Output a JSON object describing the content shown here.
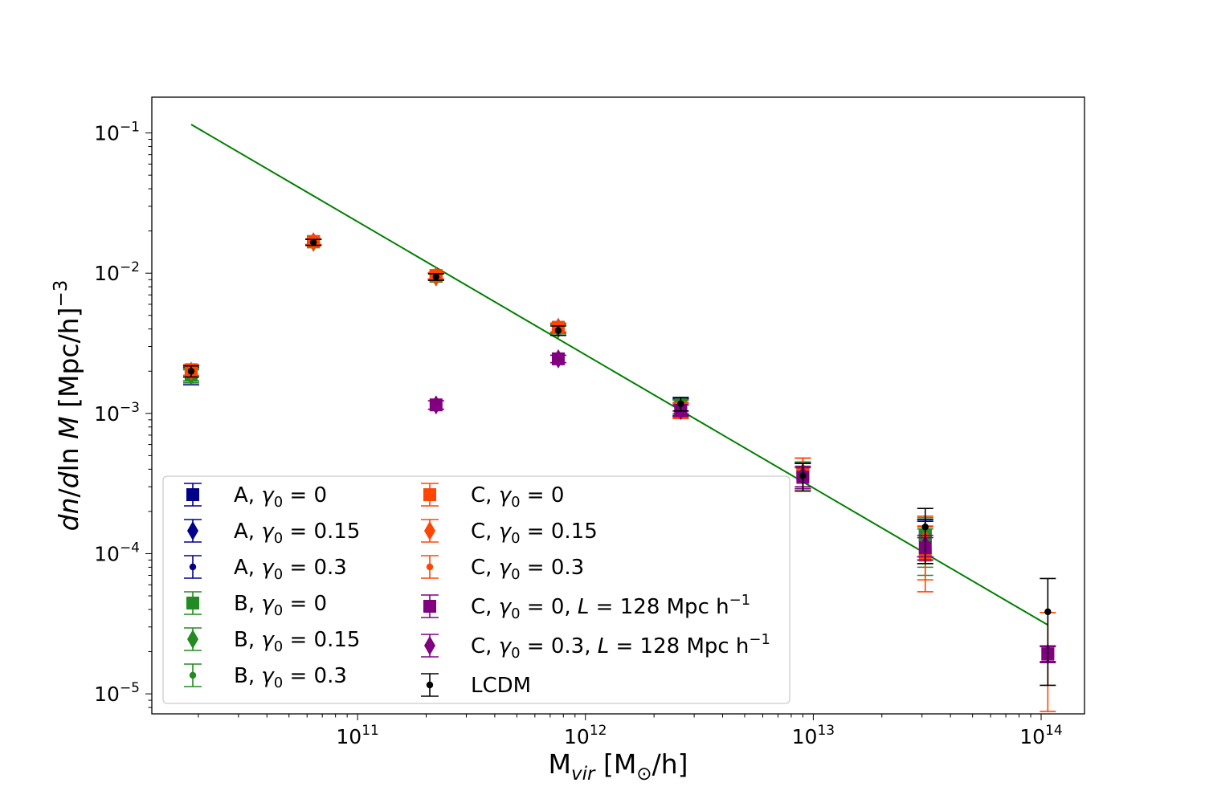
{
  "chart_data": {
    "type": "scatter",
    "title": "",
    "xlabel": "M_vir [M_⊙/h]",
    "ylabel": "dn/d ln M [Mpc/h]^−3",
    "xscale": "log",
    "yscale": "log",
    "xlim": [
      12500000000,
      155000000000000
    ],
    "ylim": [
      7.2e-06,
      0.18
    ],
    "grid": false,
    "legend_position": "lower-left",
    "xticks": [
      {
        "value": 100000000000,
        "base": "10",
        "exp": "11"
      },
      {
        "value": 1000000000000,
        "base": "10",
        "exp": "12"
      },
      {
        "value": 10000000000000,
        "base": "10",
        "exp": "13"
      },
      {
        "value": 100000000000000,
        "base": "10",
        "exp": "14"
      }
    ],
    "yticks": [
      {
        "value": 0.1,
        "base": "10",
        "exp": "−1"
      },
      {
        "value": 0.01,
        "base": "10",
        "exp": "−2"
      },
      {
        "value": 0.001,
        "base": "10",
        "exp": "−3"
      },
      {
        "value": 0.0001,
        "base": "10",
        "exp": "−4"
      },
      {
        "value": 1e-05,
        "base": "10",
        "exp": "−5"
      }
    ],
    "fit_line": {
      "color": "#008000",
      "x": [
        18600000000,
        107000000000000
      ],
      "y": [
        0.115,
        3.1e-05
      ]
    },
    "series": [
      {
        "name": "A, γ0 = 0",
        "label_pre": "A, ",
        "gamma": "0",
        "label_post": "",
        "color": "#00008b",
        "marker": "square",
        "x": [
          18600000000,
          64000000000,
          221000000000,
          760000000000,
          2620000000000,
          9000000000000,
          31000000000000
        ],
        "y": [
          0.00195,
          0.0168,
          0.0096,
          0.0041,
          0.00112,
          0.00037,
          0.000135
        ],
        "err_lo": [
          0.00035,
          0.0008,
          0.0005,
          0.0003,
          0.00015,
          8e-05,
          4e-05
        ],
        "err_hi": [
          0.00018,
          0.0008,
          0.0005,
          0.0003,
          0.00015,
          8e-05,
          4e-05
        ]
      },
      {
        "name": "A, γ0 = 0.15",
        "label_pre": "A, ",
        "gamma": "0.15",
        "label_post": "",
        "color": "#00008b",
        "marker": "diamond",
        "x": [
          18600000000,
          64000000000,
          221000000000,
          760000000000,
          2620000000000,
          9000000000000,
          31000000000000
        ],
        "y": [
          0.0019,
          0.0167,
          0.0095,
          0.0041,
          0.00111,
          0.00036,
          0.00013
        ],
        "err_lo": [
          0.0002,
          0.0008,
          0.0005,
          0.0003,
          0.00015,
          8e-05,
          4e-05
        ],
        "err_hi": [
          0.0002,
          0.0008,
          0.0005,
          0.0003,
          0.00015,
          8e-05,
          4e-05
        ]
      },
      {
        "name": "A, γ0 = 0.3",
        "label_pre": "A, ",
        "gamma": "0.3",
        "label_post": "",
        "color": "#00008b",
        "marker": "dot",
        "x": [
          18600000000,
          64000000000,
          221000000000,
          760000000000,
          2620000000000,
          9000000000000,
          31000000000000
        ],
        "y": [
          0.0019,
          0.0166,
          0.0095,
          0.004,
          0.0011,
          0.00036,
          0.000135
        ],
        "err_lo": [
          0.0002,
          0.0008,
          0.0005,
          0.0003,
          0.00015,
          8e-05,
          4e-05
        ],
        "err_hi": [
          0.0002,
          0.0008,
          0.0005,
          0.0003,
          0.00015,
          8e-05,
          4e-05
        ]
      },
      {
        "name": "B, γ0 = 0",
        "label_pre": "B, ",
        "gamma": "0",
        "label_post": "",
        "color": "#228b22",
        "marker": "square",
        "x": [
          18600000000,
          64000000000,
          221000000000,
          760000000000,
          2620000000000,
          9000000000000,
          31000000000000
        ],
        "y": [
          0.0019,
          0.0167,
          0.0095,
          0.0041,
          0.00115,
          0.00037,
          0.000135
        ],
        "err_lo": [
          0.0002,
          0.0008,
          0.0005,
          0.0003,
          0.00015,
          8e-05,
          5e-05
        ],
        "err_hi": [
          0.0002,
          0.0008,
          0.0005,
          0.0003,
          0.00015,
          8e-05,
          5e-05
        ]
      },
      {
        "name": "B, γ0 = 0.15",
        "label_pre": "B, ",
        "gamma": "0.15",
        "label_post": "",
        "color": "#228b22",
        "marker": "diamond",
        "x": [
          18600000000,
          64000000000,
          221000000000,
          760000000000,
          2620000000000,
          9000000000000,
          31000000000000
        ],
        "y": [
          0.00185,
          0.0166,
          0.0094,
          0.004,
          0.0011,
          0.00036,
          0.00013
        ],
        "err_lo": [
          0.0002,
          0.0008,
          0.0005,
          0.0003,
          0.00015,
          8e-05,
          5e-05
        ],
        "err_hi": [
          0.0002,
          0.0008,
          0.0005,
          0.0003,
          0.00015,
          8e-05,
          5e-05
        ]
      },
      {
        "name": "B, γ0 = 0.3",
        "label_pre": "B, ",
        "gamma": "0.3",
        "label_post": "",
        "color": "#228b22",
        "marker": "dot",
        "x": [
          18600000000,
          64000000000,
          221000000000,
          760000000000,
          2620000000000,
          9000000000000,
          31000000000000
        ],
        "y": [
          0.0019,
          0.0166,
          0.0095,
          0.004,
          0.0011,
          0.00036,
          0.00011
        ],
        "err_lo": [
          0.0002,
          0.0008,
          0.0005,
          0.0003,
          0.00015,
          8e-05,
          4e-05
        ],
        "err_hi": [
          0.0002,
          0.0008,
          0.0005,
          0.0003,
          0.00015,
          8e-05,
          4e-05
        ]
      },
      {
        "name": "C, γ0 = 0",
        "label_pre": "C, ",
        "gamma": "0",
        "label_post": "",
        "color": "#ff4500",
        "marker": "square",
        "x": [
          18600000000,
          64000000000,
          221000000000,
          760000000000,
          2620000000000,
          9000000000000,
          31000000000000,
          107000000000000
        ],
        "y": [
          0.00205,
          0.0168,
          0.0096,
          0.0041,
          0.00105,
          0.00038,
          9.75e-05,
          1.95e-05
        ],
        "err_lo": [
          0.00018,
          0.0008,
          0.0005,
          0.0003,
          0.00013,
          0.0001,
          4.4e-05,
          1.2e-05
        ],
        "err_hi": [
          0.00018,
          0.0008,
          0.0005,
          0.0003,
          0.00013,
          0.0001,
          6e-05,
          1.85e-05
        ]
      },
      {
        "name": "C, γ0 = 0.15",
        "label_pre": "C, ",
        "gamma": "0.15",
        "label_post": "",
        "color": "#ff4500",
        "marker": "diamond",
        "x": [
          18600000000,
          64000000000,
          221000000000,
          760000000000,
          2620000000000,
          9000000000000,
          31000000000000
        ],
        "y": [
          0.002,
          0.0167,
          0.0095,
          0.0041,
          0.00105,
          0.00038,
          0.000105
        ],
        "err_lo": [
          0.00018,
          0.0008,
          0.0005,
          0.0003,
          0.00013,
          0.0001,
          4e-05
        ],
        "err_hi": [
          0.00018,
          0.0008,
          0.0005,
          0.0003,
          0.00013,
          0.0001,
          5e-05
        ]
      },
      {
        "name": "C, γ0 = 0.3",
        "label_pre": "C, ",
        "gamma": "0.3",
        "label_post": "",
        "color": "#ff4500",
        "marker": "dot",
        "x": [
          18600000000,
          64000000000,
          221000000000,
          760000000000,
          2620000000000,
          9000000000000,
          31000000000000
        ],
        "y": [
          0.002,
          0.0167,
          0.0095,
          0.0041,
          0.00107,
          0.00038,
          0.000135
        ],
        "err_lo": [
          0.00018,
          0.0008,
          0.0005,
          0.0003,
          0.00013,
          0.0001,
          5e-05
        ],
        "err_hi": [
          0.00018,
          0.0008,
          0.0005,
          0.0003,
          0.00013,
          0.0001,
          5e-05
        ]
      },
      {
        "name": "C, γ0 = 0, L = 128 Mpc h−1",
        "label_pre": "C, ",
        "gamma": "0",
        "label_post": ", L = 128 Mpc h⁻¹",
        "color": "#800080",
        "marker": "square",
        "x": [
          221000000000,
          760000000000,
          2620000000000,
          9000000000000,
          31000000000000,
          107000000000000
        ],
        "y": [
          0.00115,
          0.00245,
          0.00105,
          0.00035,
          0.00011,
          1.92e-05
        ],
        "err_lo": [
          8e-05,
          0.00015,
          0.0001,
          6e-05,
          2e-05,
          2.5e-06
        ],
        "err_hi": [
          8e-05,
          0.00015,
          0.0001,
          6e-05,
          2e-05,
          2.5e-06
        ]
      },
      {
        "name": "C, γ0 = 0.3, L = 128 Mpc h−1",
        "label_pre": "C, ",
        "gamma": "0.3",
        "label_post": ", L = 128 Mpc h⁻¹",
        "color": "#800080",
        "marker": "diamond",
        "x": [
          221000000000,
          760000000000,
          2620000000000,
          9000000000000,
          31000000000000,
          107000000000000
        ],
        "y": [
          0.00115,
          0.00245,
          0.00105,
          0.00036,
          0.000115,
          1.95e-05
        ],
        "err_lo": [
          8e-05,
          0.00015,
          0.0001,
          6e-05,
          2e-05,
          2.5e-06
        ],
        "err_hi": [
          8e-05,
          0.00015,
          0.0001,
          6e-05,
          2e-05,
          2.5e-06
        ]
      },
      {
        "name": "LCDM",
        "label_pre": "LCDM",
        "gamma": "",
        "label_post": "",
        "color": "#000000",
        "marker": "dot",
        "x": [
          18600000000,
          64000000000,
          221000000000,
          760000000000,
          2620000000000,
          9000000000000,
          31000000000000,
          107000000000000
        ],
        "y": [
          0.002,
          0.0166,
          0.0094,
          0.0039,
          0.00117,
          0.00036,
          0.000155,
          3.85e-05
        ],
        "err_lo": [
          0.00018,
          0.0008,
          0.0005,
          0.0003,
          0.00013,
          8e-05,
          7e-05,
          2.7e-05
        ],
        "err_hi": [
          0.00018,
          0.0008,
          0.0005,
          0.0003,
          0.00013,
          8e-05,
          5.5e-05,
          2.8e-05
        ]
      }
    ]
  }
}
